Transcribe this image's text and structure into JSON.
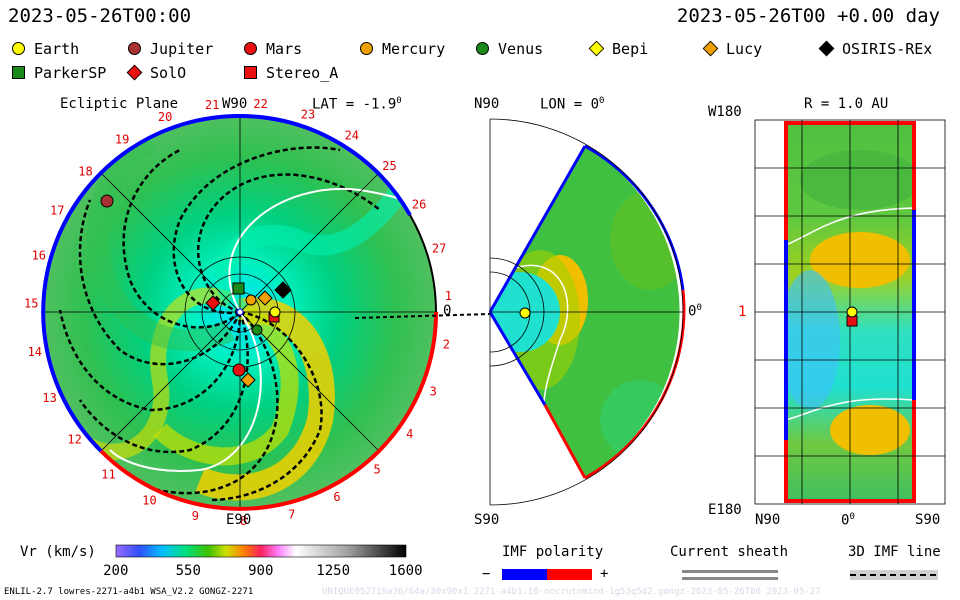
{
  "header": {
    "left_time": "2023-05-26T00:00",
    "right_time": "2023-05-26T00 +0.00 day"
  },
  "legend": [
    {
      "name": "Earth",
      "marker": "circle",
      "color": "#ffff00"
    },
    {
      "name": "Jupiter",
      "marker": "circle",
      "color": "#a83232"
    },
    {
      "name": "Mars",
      "marker": "circle",
      "color": "#e81010"
    },
    {
      "name": "Mercury",
      "marker": "circle",
      "color": "#f0a000"
    },
    {
      "name": "Venus",
      "marker": "circle",
      "color": "#1a8a1a"
    },
    {
      "name": "Bepi",
      "marker": "diamond",
      "color": "#ffff00"
    },
    {
      "name": "Lucy",
      "marker": "diamond",
      "color": "#f0a000"
    },
    {
      "name": "OSIRIS-REx",
      "marker": "diamond",
      "color": "#000000"
    },
    {
      "name": "ParkerSP",
      "marker": "square",
      "color": "#1a8a1a"
    },
    {
      "name": "SolO",
      "marker": "diamond",
      "color": "#e81010"
    },
    {
      "name": "Stereo_A",
      "marker": "square",
      "color": "#e81010"
    }
  ],
  "panels": {
    "ecliptic": {
      "title": "Ecliptic Plane",
      "top_label": "W90",
      "lat_label": "LAT = -1.9",
      "degree_mark": "0",
      "bottom_label": "E90",
      "right_label": "0",
      "ticks": [
        "17",
        "18",
        "19",
        "20",
        "21",
        "22",
        "23",
        "24",
        "25",
        "26",
        "27",
        "1",
        "2",
        "3",
        "4",
        "5",
        "6",
        "7",
        "8",
        "9",
        "10",
        "11",
        "12",
        "13",
        "14",
        "15",
        "16"
      ]
    },
    "meridional": {
      "top_label": "N90",
      "lon_label": "LON = 0",
      "degree_mark": "0",
      "bottom_label": "S90",
      "right_label": "0"
    },
    "surface": {
      "top_left": "W180",
      "radius_label": "R = 1.0 AU",
      "mid_left": "1",
      "bottom_left": "E180",
      "x_left": "N90",
      "x_mid": "0",
      "x_right": "S90"
    }
  },
  "colorbar": {
    "label": "Vr (km/s)",
    "ticks": [
      "200",
      "550",
      "900",
      "1250",
      "1600"
    ],
    "min": 200,
    "max": 1600
  },
  "imf_polarity": {
    "title": "IMF polarity",
    "minus": "−",
    "plus": "+",
    "neg_color": "#0000ff",
    "pos_color": "#ff0000"
  },
  "current_sheath": {
    "title": "Current sheath"
  },
  "imf_line": {
    "title": "3D IMF line"
  },
  "footer": {
    "left": "ENLIL-2.7 lowres-2271-a4b1 WSA_V2.2 GONGZ-2271",
    "right": "UNIQUE052718a36/64a/30x90x1 2271-a4b1.16-nocrutnmind-1g53q5d2.gongz-2023-05-26T00   2023-05-27"
  },
  "chart_data": {
    "type": "heatmap",
    "title": "",
    "colorbar_label": "Vr (km/s)",
    "colorbar_range": [
      200,
      1600
    ],
    "bodies_ecliptic": [
      "Earth",
      "Jupiter",
      "Mars",
      "Mercury",
      "Venus",
      "Bepi",
      "Lucy",
      "OSIRIS-REx",
      "ParkerSP",
      "SolO",
      "Stereo_A"
    ]
  }
}
